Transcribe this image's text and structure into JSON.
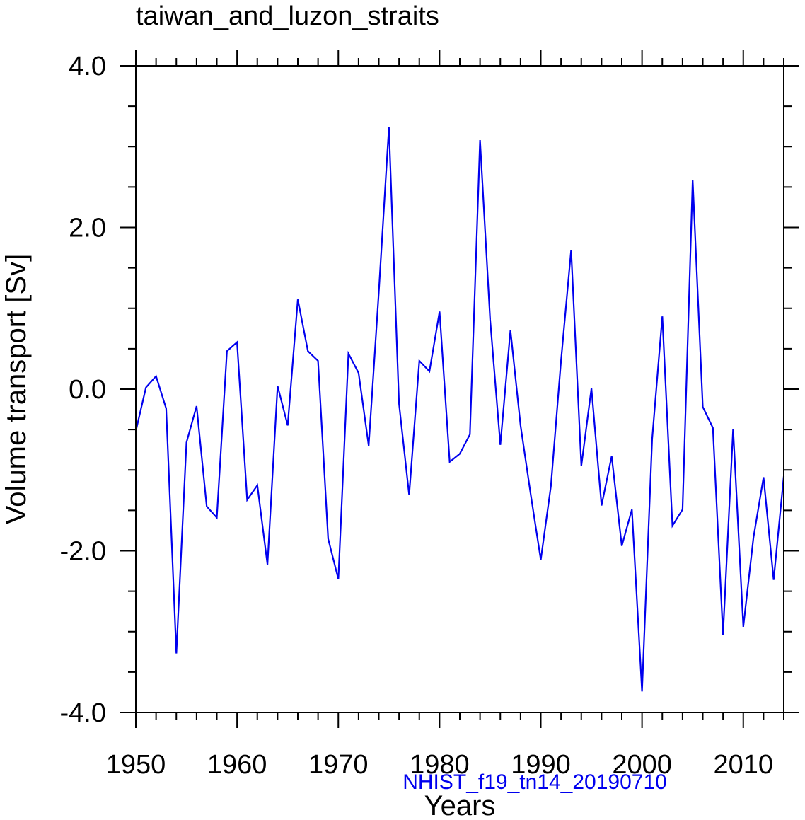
{
  "chart_data": {
    "type": "line",
    "title": "taiwan_and_luzon_straits",
    "xlabel": "Years",
    "ylabel": "Volume transport [Sv]",
    "subtitle": "NHIST_f19_tn14_20190710",
    "xlim": [
      1950,
      2014
    ],
    "ylim": [
      -4.0,
      4.0
    ],
    "x_ticks": [
      1950,
      1960,
      1970,
      1980,
      1990,
      2000,
      2010
    ],
    "x_tick_labels": [
      "1950",
      "1960",
      "1970",
      "1980",
      "1990",
      "2000",
      "2010"
    ],
    "y_ticks": [
      -4.0,
      -2.0,
      0.0,
      2.0,
      4.0
    ],
    "y_tick_labels": [
      "-4.0",
      "-2.0",
      "0.0",
      "2.0",
      "4.0"
    ],
    "line_color": "#0000ee",
    "subtitle_color": "#0000ee",
    "series": [
      {
        "name": "NHIST_f19_tn14_20190710",
        "x": [
          1950,
          1951,
          1952,
          1953,
          1954,
          1955,
          1956,
          1957,
          1958,
          1959,
          1960,
          1961,
          1962,
          1963,
          1964,
          1965,
          1966,
          1967,
          1968,
          1969,
          1970,
          1971,
          1972,
          1973,
          1974,
          1975,
          1976,
          1977,
          1978,
          1979,
          1980,
          1981,
          1982,
          1983,
          1984,
          1985,
          1986,
          1987,
          1988,
          1989,
          1990,
          1991,
          1992,
          1993,
          1994,
          1995,
          1996,
          1997,
          1998,
          1999,
          2000,
          2001,
          2002,
          2003,
          2004,
          2005,
          2006,
          2007,
          2008,
          2009,
          2010,
          2011,
          2012,
          2013,
          2014
        ],
        "values": [
          -0.52,
          0.02,
          0.16,
          -0.24,
          -3.27,
          -0.66,
          -0.21,
          -1.45,
          -1.59,
          0.47,
          0.58,
          -1.37,
          -1.19,
          -2.17,
          0.04,
          -0.45,
          1.11,
          0.47,
          0.35,
          -1.85,
          -2.35,
          0.44,
          0.2,
          -0.7,
          1.2,
          3.24,
          -0.18,
          -1.31,
          0.35,
          0.22,
          0.96,
          -0.9,
          -0.8,
          -0.56,
          3.08,
          0.86,
          -0.69,
          0.73,
          -0.45,
          -1.3,
          -2.11,
          -1.2,
          0.35,
          1.72,
          -0.95,
          0.01,
          -1.44,
          -0.83,
          -1.94,
          -1.49,
          -3.74,
          -0.62,
          0.9,
          -1.69,
          -1.49,
          2.59,
          -0.22,
          -0.48,
          -3.04,
          -0.49,
          -2.94,
          -1.84,
          -1.09,
          -2.36,
          -1.08
        ]
      }
    ]
  }
}
